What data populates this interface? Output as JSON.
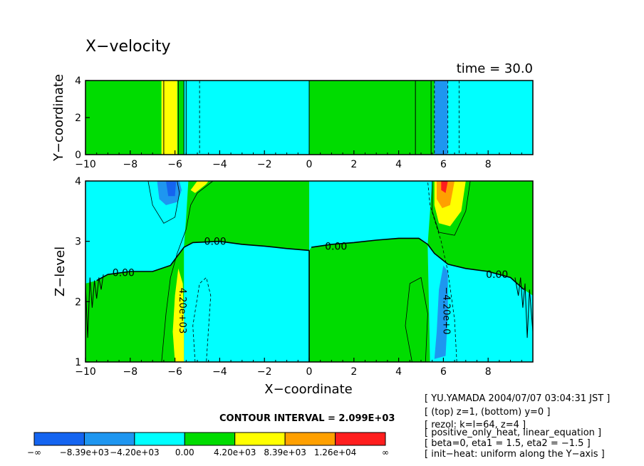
{
  "chart_data": [
    {
      "type": "heatmap",
      "panel": "top",
      "title": "X−velocity",
      "time_label": "time = 30.0",
      "xlabel": "",
      "ylabel": "Y−coordinate",
      "xlim": [
        -10,
        10
      ],
      "ylim": [
        0,
        4
      ],
      "x_ticks": [
        "−10",
        "−8",
        "−6",
        "−4",
        "−2",
        "0",
        "2",
        "4",
        "6",
        "8"
      ],
      "y_ticks": [
        "0",
        "2",
        "4"
      ],
      "bands": [
        {
          "x0": -10.0,
          "x1": -6.6,
          "level": 3
        },
        {
          "x0": -6.6,
          "x1": -5.9,
          "level": 4
        },
        {
          "x0": -5.9,
          "x1": -5.6,
          "level": 3
        },
        {
          "x0": -5.6,
          "x1": 0.0,
          "level": 2
        },
        {
          "x0": 0.0,
          "x1": 5.6,
          "level": 3
        },
        {
          "x0": 5.6,
          "x1": 6.2,
          "level": 1
        },
        {
          "x0": 6.2,
          "x1": 10.0,
          "level": 2
        }
      ],
      "contour_lines": [
        {
          "x": -6.5,
          "style": "solid"
        },
        {
          "x": -5.85,
          "style": "solid"
        },
        {
          "x": -5.6,
          "style": "solid"
        },
        {
          "x": -5.5,
          "style": "solid"
        },
        {
          "x": -4.9,
          "style": "dashed"
        },
        {
          "x": 0.0,
          "style": "solid"
        },
        {
          "x": 4.75,
          "style": "solid"
        },
        {
          "x": 5.45,
          "style": "solid"
        },
        {
          "x": 5.6,
          "style": "dashed"
        },
        {
          "x": 6.2,
          "style": "dashed"
        },
        {
          "x": 6.7,
          "style": "dashed"
        }
      ]
    },
    {
      "type": "heatmap",
      "panel": "bottom",
      "xlabel": "X−coordinate",
      "ylabel": "Z−level",
      "xlim": [
        -10,
        10
      ],
      "ylim": [
        1,
        4
      ],
      "x_ticks": [
        "−10",
        "−8",
        "−6",
        "−4",
        "−2",
        "0",
        "2",
        "4",
        "6",
        "8"
      ],
      "y_ticks": [
        "1",
        "2",
        "3",
        "4"
      ],
      "zero_contour": [
        [
          -9.5,
          2.35
        ],
        [
          -9.0,
          2.45
        ],
        [
          -8.0,
          2.5
        ],
        [
          -7.0,
          2.5
        ],
        [
          -6.2,
          2.6
        ],
        [
          -5.6,
          2.9
        ],
        [
          -5.2,
          2.98
        ],
        [
          -4.0,
          3.0
        ],
        [
          -3.0,
          2.95
        ],
        [
          -2.0,
          2.92
        ],
        [
          -1.0,
          2.88
        ],
        [
          0.0,
          2.85
        ],
        [
          0.1,
          2.9
        ],
        [
          1.0,
          2.95
        ],
        [
          2.0,
          2.98
        ],
        [
          3.0,
          3.02
        ],
        [
          4.0,
          3.05
        ],
        [
          4.9,
          3.05
        ],
        [
          5.3,
          2.95
        ],
        [
          5.6,
          2.8
        ],
        [
          6.2,
          2.62
        ],
        [
          7.0,
          2.55
        ],
        [
          8.0,
          2.5
        ],
        [
          9.0,
          2.4
        ],
        [
          9.6,
          2.2
        ]
      ],
      "zero_labels": [
        {
          "x": -8.3,
          "y": 2.48,
          "text": "0.00"
        },
        {
          "x": -4.2,
          "y": 3.0,
          "text": "0.00"
        },
        {
          "x": 1.2,
          "y": 2.92,
          "text": "0.00"
        },
        {
          "x": 8.4,
          "y": 2.45,
          "text": "0.00"
        }
      ],
      "line_labels": [
        {
          "x": -5.8,
          "y": 1.85,
          "text": "4.20e+03"
        },
        {
          "x": 6.0,
          "y": 1.85,
          "text": "−4.20e+0"
        }
      ]
    }
  ],
  "contour_interval_label": "CONTOUR INTERVAL = 2.099E+03",
  "legend": {
    "colors": [
      "#1464f0",
      "#1e96f0",
      "#00ffff",
      "#00dc00",
      "#ffff00",
      "#ffa000",
      "#ff1e1e"
    ],
    "labels": [
      "−∞",
      "−8.39e+03",
      "−4.20e+03",
      "0.00",
      "4.20e+03",
      "8.39e+03",
      "1.26e+04",
      "∞"
    ]
  },
  "info_lines": [
    "[ YU.YAMADA 2004/07/07 03:04:31 JST ]",
    "[ (top) z=1, (bottom) y=0 ]",
    "[ rezol: k=l=64, z=4 ]",
    "[ positive_only_heat, linear_equation ]",
    "[ beta=0, eta1 = 1.5, eta2 = −1.5 ]",
    "[ init−heat: uniform along the Y−axis ]"
  ]
}
